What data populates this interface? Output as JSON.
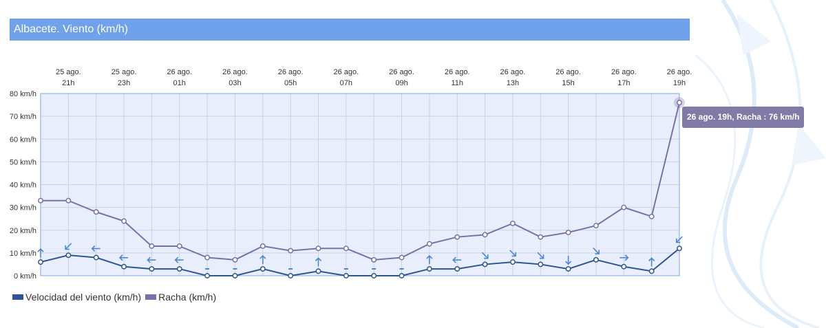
{
  "title": "Albacete. Viento (km/h)",
  "tooltip": "26 ago. 19h, Racha : 76 km/h",
  "colors": {
    "title_bg": "#6fa2ea",
    "plot_bg": "#e8eefb",
    "velocidad": "#2c5591",
    "racha": "#7a70a9",
    "arrow": "#4a86d4",
    "tooltip_bg": "#7f7aa6"
  },
  "chart_data": {
    "type": "line",
    "x": [
      "25 ago. 20h",
      "25 ago. 21h",
      "25 ago. 22h",
      "25 ago. 23h",
      "26 ago. 00h",
      "26 ago. 01h",
      "26 ago. 02h",
      "26 ago. 03h",
      "26 ago. 04h",
      "26 ago. 05h",
      "26 ago. 06h",
      "26 ago. 07h",
      "26 ago. 08h",
      "26 ago. 09h",
      "26 ago. 10h",
      "26 ago. 11h",
      "26 ago. 12h",
      "26 ago. 13h",
      "26 ago. 14h",
      "26 ago. 15h",
      "26 ago. 16h",
      "26 ago. 17h",
      "26 ago. 18h",
      "26 ago. 19h"
    ],
    "tick_labels": [
      {
        "day": "25 ago.",
        "hour": "21h",
        "index": 1
      },
      {
        "day": "25 ago.",
        "hour": "23h",
        "index": 3
      },
      {
        "day": "26 ago.",
        "hour": "01h",
        "index": 5
      },
      {
        "day": "26 ago.",
        "hour": "03h",
        "index": 7
      },
      {
        "day": "26 ago.",
        "hour": "05h",
        "index": 9
      },
      {
        "day": "26 ago.",
        "hour": "07h",
        "index": 11
      },
      {
        "day": "26 ago.",
        "hour": "09h",
        "index": 13
      },
      {
        "day": "26 ago.",
        "hour": "11h",
        "index": 15
      },
      {
        "day": "26 ago.",
        "hour": "13h",
        "index": 17
      },
      {
        "day": "26 ago.",
        "hour": "15h",
        "index": 19
      },
      {
        "day": "26 ago.",
        "hour": "17h",
        "index": 21
      },
      {
        "day": "26 ago.",
        "hour": "19h",
        "index": 23
      }
    ],
    "y_ticks": [
      "0 km/h",
      "10 km/h",
      "20 km/h",
      "30 km/h",
      "40 km/h",
      "50 km/h",
      "60 km/h",
      "70 km/h",
      "80 km/h"
    ],
    "ylim": [
      0,
      80
    ],
    "grid": true,
    "legend_position": "bottom-left",
    "series": [
      {
        "name": "Velocidad del viento (km/h)",
        "values": [
          6,
          9,
          8,
          4,
          3,
          3,
          0,
          0,
          3,
          0,
          2,
          0,
          0,
          0,
          3,
          3,
          5,
          6,
          5,
          3,
          7,
          4,
          2,
          12
        ]
      },
      {
        "name": "Racha (km/h)",
        "values": [
          33,
          33,
          28,
          24,
          13,
          13,
          8,
          7,
          13,
          11,
          12,
          12,
          7,
          8,
          14,
          17,
          18,
          23,
          17,
          19,
          22,
          30,
          26,
          76
        ]
      }
    ],
    "wind_direction_deg": [
      180,
      45,
      90,
      90,
      90,
      90,
      null,
      null,
      180,
      null,
      180,
      null,
      null,
      null,
      180,
      90,
      315,
      315,
      315,
      0,
      315,
      270,
      180,
      45
    ]
  }
}
